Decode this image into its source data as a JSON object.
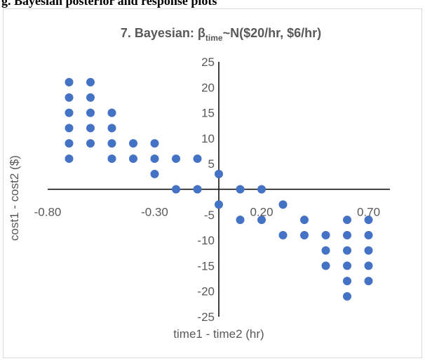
{
  "caption": "g. Bayesian posterior and response plots",
  "chart_data": {
    "type": "scatter",
    "title": "7. Bayesian: βtime~N($20/hr, $6/hr)",
    "title_parts": {
      "prefix": "7. Bayesian: β",
      "subscript": "time",
      "suffix": "~N($20/hr, $6/hr)"
    },
    "xlabel": "time1 - time2 (hr)",
    "ylabel": "cost1 - cost2 ($)",
    "xlim": [
      -0.8,
      0.8
    ],
    "ylim": [
      -25,
      25
    ],
    "x_ticks": [
      -0.8,
      -0.3,
      0.2,
      0.7
    ],
    "x_tick_labels": [
      "-0.80",
      "-0.30",
      "0.20",
      "0.70"
    ],
    "y_ticks": [
      -25,
      -20,
      -15,
      -10,
      -5,
      5,
      10,
      15,
      20,
      25
    ],
    "y_tick_labels": [
      "-25",
      "-20",
      "-15",
      "-10",
      "-5",
      "5",
      "10",
      "15",
      "20",
      "25"
    ],
    "grid": false,
    "marker_color": "#4472c4",
    "points": [
      [
        -0.7,
        21
      ],
      [
        -0.7,
        18
      ],
      [
        -0.7,
        15
      ],
      [
        -0.7,
        12
      ],
      [
        -0.7,
        9
      ],
      [
        -0.7,
        6
      ],
      [
        -0.6,
        21
      ],
      [
        -0.6,
        18
      ],
      [
        -0.6,
        15
      ],
      [
        -0.6,
        12
      ],
      [
        -0.6,
        9
      ],
      [
        -0.5,
        15
      ],
      [
        -0.5,
        12
      ],
      [
        -0.5,
        9
      ],
      [
        -0.5,
        6
      ],
      [
        -0.4,
        9
      ],
      [
        -0.4,
        6
      ],
      [
        -0.3,
        9
      ],
      [
        -0.3,
        6
      ],
      [
        -0.3,
        3
      ],
      [
        -0.2,
        6
      ],
      [
        -0.2,
        0
      ],
      [
        -0.1,
        6
      ],
      [
        -0.1,
        0
      ],
      [
        0.0,
        3
      ],
      [
        0.0,
        -3
      ],
      [
        0.1,
        0
      ],
      [
        0.1,
        -6
      ],
      [
        0.2,
        0
      ],
      [
        0.2,
        -6
      ],
      [
        0.3,
        -3
      ],
      [
        0.3,
        -9
      ],
      [
        0.4,
        -6
      ],
      [
        0.4,
        -9
      ],
      [
        0.5,
        -9
      ],
      [
        0.5,
        -12
      ],
      [
        0.5,
        -15
      ],
      [
        0.6,
        -6
      ],
      [
        0.6,
        -9
      ],
      [
        0.6,
        -12
      ],
      [
        0.6,
        -15
      ],
      [
        0.6,
        -18
      ],
      [
        0.6,
        -21
      ],
      [
        0.7,
        -6
      ],
      [
        0.7,
        -9
      ],
      [
        0.7,
        -12
      ],
      [
        0.7,
        -15
      ],
      [
        0.7,
        -18
      ]
    ]
  }
}
